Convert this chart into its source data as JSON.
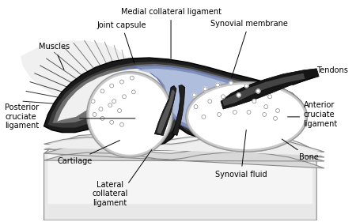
{
  "bg_color": "#ffffff",
  "labels": {
    "medial_collateral_ligament": "Medial collateral ligament",
    "joint_capsule": "Joint capsule",
    "synovial_membrane": "Synovial membrane",
    "muscles": "Muscles",
    "tendons": "Tendons",
    "posterior_cruciate": "Posterior\ncruciate\nligament",
    "anterior_cruciate": "Anterior\ncruciate\nligament",
    "cartilage": "Cartilage",
    "bone": "Bone",
    "lateral_collateral": "Lateral\ncollateral\nligament",
    "synovial_fluid": "Synovial fluid"
  }
}
